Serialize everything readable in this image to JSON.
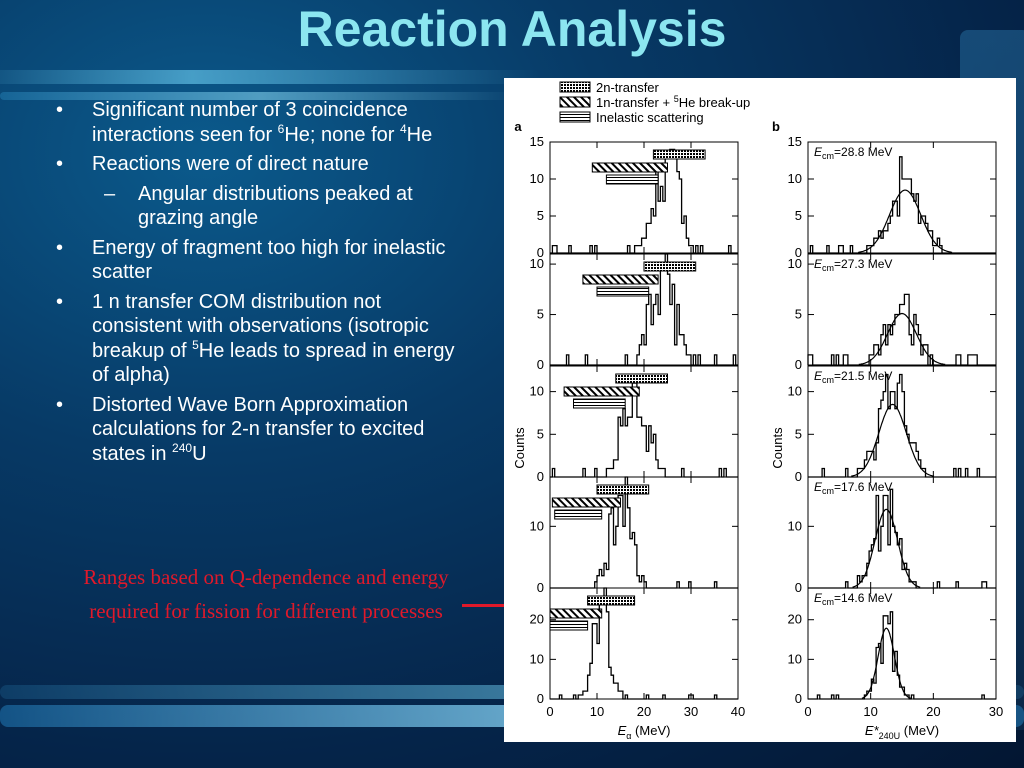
{
  "slide": {
    "title": "Reaction Analysis",
    "bullets": [
      {
        "level": 1,
        "parts": [
          {
            "t": "Significant number of 3 coincidence interactions seen for "
          },
          {
            "sup": "6"
          },
          {
            "t": "He; none for "
          },
          {
            "sup": "4"
          },
          {
            "t": "He"
          }
        ]
      },
      {
        "level": 1,
        "parts": [
          {
            "t": "Reactions were of direct nature"
          }
        ]
      },
      {
        "level": 2,
        "parts": [
          {
            "t": "Angular distributions peaked at grazing angle"
          }
        ]
      },
      {
        "level": 1,
        "parts": [
          {
            "t": "Energy of fragment too high for inelastic scatter"
          }
        ]
      },
      {
        "level": 1,
        "parts": [
          {
            "t": "1 n transfer COM distribution not consistent with observations (isotropic breakup of "
          },
          {
            "sup": "5"
          },
          {
            "t": "He leads to spread in energy of alpha)"
          }
        ]
      },
      {
        "level": 1,
        "parts": [
          {
            "t": "Distorted Wave Born Approximation calculations for 2-n transfer to excited states in "
          },
          {
            "sup": "240"
          },
          {
            "t": "U"
          }
        ]
      }
    ],
    "bullet_marker": "•",
    "sub_marker": "–",
    "note": "Ranges based on Q-dependence and energy required for fission for different processes",
    "colors": {
      "title": "#8ce6f0",
      "text": "#ffffff",
      "note": "#e0192a",
      "background": "#073a66"
    }
  },
  "chart_data": [
    {
      "type": "histogram",
      "panel_label": "a",
      "legend": [
        {
          "label": "2n-transfer",
          "pattern": "dots"
        },
        {
          "label": "1n-transfer + ",
          "sup": "5",
          "label_end": "He break-up",
          "pattern": "diagonal-hatch"
        },
        {
          "label": "Inelastic scattering",
          "pattern": "horizontal-lines"
        }
      ],
      "legend_position": "top",
      "xlabel": "E",
      "xlabel_sub": "α",
      "xlabel_unit": " (MeV)",
      "ylabel": "Counts",
      "xlim": [
        0,
        40
      ],
      "xticks": [
        0,
        10,
        20,
        30,
        40
      ],
      "rows": [
        {
          "ylim": [
            0,
            15
          ],
          "yticks": [
            0,
            5,
            10,
            15
          ],
          "ranges": [
            {
              "pattern": "dots",
              "from": 22,
              "to": 33
            },
            {
              "pattern": "diagonal-hatch",
              "from": 9,
              "to": 25
            },
            {
              "pattern": "horizontal-lines",
              "from": 12,
              "to": 23
            }
          ],
          "peak": 25,
          "width": 2.5,
          "peak_value": 13
        },
        {
          "ylim": [
            0,
            11
          ],
          "yticks": [
            0,
            5,
            10
          ],
          "ranges": [
            {
              "pattern": "dots",
              "from": 20,
              "to": 31
            },
            {
              "pattern": "diagonal-hatch",
              "from": 7,
              "to": 23
            },
            {
              "pattern": "horizontal-lines",
              "from": 10,
              "to": 21
            }
          ],
          "peak": 24,
          "width": 2.5,
          "peak_value": 10
        },
        {
          "ylim": [
            0,
            13
          ],
          "yticks": [
            0,
            5,
            10
          ],
          "ranges": [
            {
              "pattern": "dots",
              "from": 14,
              "to": 25
            },
            {
              "pattern": "diagonal-hatch",
              "from": 3,
              "to": 19
            },
            {
              "pattern": "horizontal-lines",
              "from": 5,
              "to": 16
            }
          ],
          "peak": 18,
          "width": 2.5,
          "peak_value": 11
        },
        {
          "ylim": [
            0,
            18
          ],
          "yticks": [
            0,
            10
          ],
          "ranges": [
            {
              "pattern": "dots",
              "from": 10,
              "to": 21
            },
            {
              "pattern": "diagonal-hatch",
              "from": 0.5,
              "to": 15
            },
            {
              "pattern": "horizontal-lines",
              "from": 1,
              "to": 11
            }
          ],
          "peak": 15,
          "width": 2.2,
          "peak_value": 15
        },
        {
          "ylim": [
            0,
            28
          ],
          "yticks": [
            0,
            10,
            20
          ],
          "ranges": [
            {
              "pattern": "dots",
              "from": 8,
              "to": 18
            },
            {
              "pattern": "diagonal-hatch",
              "from": 0,
              "to": 11
            },
            {
              "pattern": "horizontal-lines",
              "from": 0,
              "to": 8
            }
          ],
          "peak": 11,
          "width": 1.6,
          "peak_value": 25
        }
      ]
    },
    {
      "type": "histogram",
      "panel_label": "b",
      "xlabel": "E*",
      "xlabel_sub": "240U",
      "xlabel_unit": " (MeV)",
      "ylabel": "Counts",
      "xlim": [
        0,
        30
      ],
      "xticks": [
        0,
        10,
        20,
        30
      ],
      "rows": [
        {
          "ylim": [
            0,
            15
          ],
          "yticks": [
            0,
            5,
            10,
            15
          ],
          "energy_prefix": "E",
          "energy_sub": "cm",
          "energy_value": "=28.8 MeV",
          "peak": 15.5,
          "width": 2.5,
          "peak_value": 10
        },
        {
          "ylim": [
            0,
            11
          ],
          "yticks": [
            0,
            5,
            10
          ],
          "energy_prefix": "E",
          "energy_sub": "cm",
          "energy_value": "=27.3 MeV",
          "peak": 15,
          "width": 2.3,
          "peak_value": 6
        },
        {
          "ylim": [
            0,
            13
          ],
          "yticks": [
            0,
            5,
            10
          ],
          "energy_prefix": "E",
          "energy_sub": "cm",
          "energy_value": "=21.5 MeV",
          "peak": 13.5,
          "width": 2.2,
          "peak_value": 10
        },
        {
          "ylim": [
            0,
            18
          ],
          "yticks": [
            0,
            10
          ],
          "energy_prefix": "E",
          "energy_sub": "cm",
          "energy_value": "=17.6 MeV",
          "peak": 12.5,
          "width": 1.8,
          "peak_value": 15
        },
        {
          "ylim": [
            0,
            28
          ],
          "yticks": [
            0,
            10,
            20
          ],
          "energy_prefix": "E",
          "energy_sub": "cm",
          "energy_value": "=14.6 MeV",
          "peak": 12.5,
          "width": 1.3,
          "peak_value": 21
        }
      ]
    }
  ]
}
